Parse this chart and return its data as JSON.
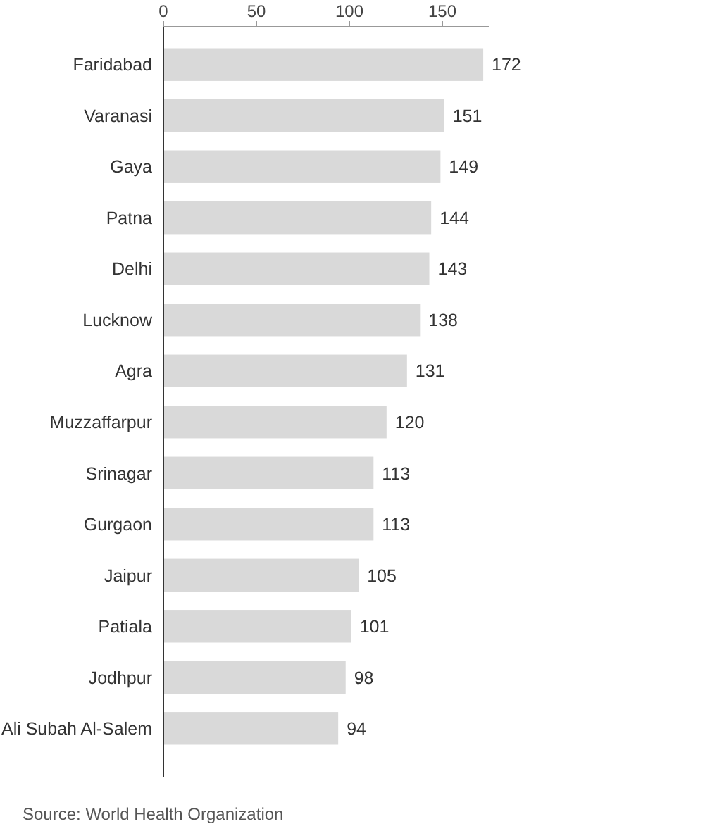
{
  "chart_data": {
    "type": "bar",
    "orientation": "horizontal",
    "categories": [
      "Faridabad",
      "Varanasi",
      "Gaya",
      "Patna",
      "Delhi",
      "Lucknow",
      "Agra",
      "Muzzaffarpur",
      "Srinagar",
      "Gurgaon",
      "Jaipur",
      "Patiala",
      "Jodhpur",
      "Ali Subah Al-Salem"
    ],
    "values": [
      172,
      151,
      149,
      144,
      143,
      138,
      131,
      120,
      113,
      113,
      105,
      101,
      98,
      94
    ],
    "color": "#d9d9d9",
    "xlim": [
      0,
      175
    ],
    "xticks": [
      0,
      50,
      100,
      150
    ],
    "data_labels": true,
    "annotations": [
      "Source: World Health Organization"
    ]
  }
}
